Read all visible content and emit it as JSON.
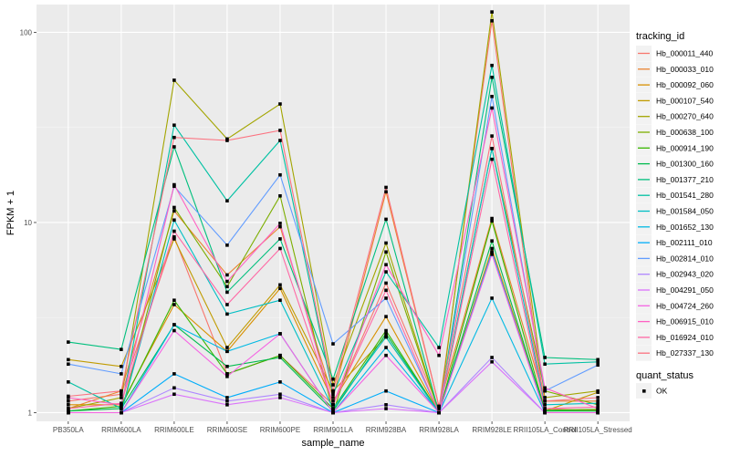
{
  "chart_data": {
    "type": "line",
    "title": "",
    "xlabel": "sample_name",
    "ylabel": "FPKM + 1",
    "y_scale": "log10",
    "ylim": [
      0.9,
      140
    ],
    "y_ticks": [
      1,
      10,
      100
    ],
    "y_tick_labels": [
      "1",
      "10",
      "100"
    ],
    "grid": true,
    "categories": [
      "PB350LA",
      "RRIM600LA",
      "RRIM600LE",
      "RRIM600SE",
      "RRIM600PE",
      "RRIM901LA",
      "RRIM928BA",
      "RRIM928LA",
      "RRIM928LE",
      "RRII105LA_Control",
      "RRII105LA_Stressed"
    ],
    "legend": {
      "position": "right",
      "color_title": "tracking_id",
      "shape_title": "quant_status",
      "shape_entries": [
        "OK"
      ]
    },
    "series": [
      {
        "name": "Hb_000011_440",
        "color": "#F8766D",
        "values": [
          1.15,
          1.25,
          8.4,
          1.6,
          2.0,
          1.1,
          4.8,
          1.05,
          115,
          1.05,
          1.02
        ]
      },
      {
        "name": "Hb_000033_010",
        "color": "#EA8331",
        "values": [
          1.05,
          1.3,
          11.5,
          5.3,
          9.5,
          1.2,
          14.5,
          1.08,
          10.5,
          1.15,
          1.15
        ]
      },
      {
        "name": "Hb_000092_060",
        "color": "#D89000",
        "values": [
          1.1,
          1.1,
          3.7,
          2.1,
          4.5,
          1.15,
          3.2,
          1.0,
          7.3,
          1.02,
          1.03
        ]
      },
      {
        "name": "Hb_000107_540",
        "color": "#C09B00",
        "values": [
          1.9,
          1.75,
          8.2,
          2.2,
          4.7,
          1.3,
          2.5,
          1.0,
          7.0,
          1.02,
          1.28
        ]
      },
      {
        "name": "Hb_000270_640",
        "color": "#A3A500",
        "values": [
          1.05,
          1.2,
          56,
          27.5,
          42,
          1.4,
          7.8,
          1.0,
          128,
          1.2,
          1.3
        ]
      },
      {
        "name": "Hb_000638_100",
        "color": "#7CAE00",
        "values": [
          1.0,
          1.0,
          12.0,
          4.6,
          13.8,
          1.0,
          7.0,
          1.0,
          24.5,
          1.3,
          1.1
        ]
      },
      {
        "name": "Hb_000914_190",
        "color": "#39B600",
        "values": [
          1.02,
          1.08,
          3.9,
          1.6,
          2.0,
          1.05,
          2.7,
          1.0,
          10.2,
          1.03,
          1.04
        ]
      },
      {
        "name": "Hb_001300_160",
        "color": "#00BB4E",
        "values": [
          1.02,
          1.05,
          2.9,
          1.75,
          1.95,
          1.02,
          2.6,
          1.0,
          8.0,
          1.02,
          1.02
        ]
      },
      {
        "name": "Hb_001377_210",
        "color": "#00BF7D",
        "values": [
          2.35,
          2.15,
          25.0,
          4.3,
          8.2,
          1.5,
          10.4,
          1.0,
          58,
          1.95,
          1.9
        ]
      },
      {
        "name": "Hb_001541_280",
        "color": "#00C1A3",
        "values": [
          1.45,
          1.05,
          32.5,
          13.0,
          27.0,
          1.25,
          5.5,
          2.2,
          67,
          1.8,
          1.85
        ]
      },
      {
        "name": "Hb_001584_050",
        "color": "#00BFC4",
        "values": [
          1.0,
          1.0,
          10.3,
          3.3,
          3.9,
          1.05,
          2.5,
          1.0,
          24.5,
          1.1,
          1.12
        ]
      },
      {
        "name": "Hb_001652_130",
        "color": "#00B9E3",
        "values": [
          1.0,
          1.0,
          2.9,
          2.1,
          2.6,
          1.0,
          2.2,
          1.0,
          4.0,
          1.0,
          1.0
        ]
      },
      {
        "name": "Hb_002111_010",
        "color": "#00ADFA",
        "values": [
          1.0,
          1.0,
          1.6,
          1.2,
          1.45,
          1.0,
          1.3,
          1.0,
          7.0,
          1.0,
          1.0
        ]
      },
      {
        "name": "Hb_002814_010",
        "color": "#619CFF",
        "values": [
          1.8,
          1.6,
          15.5,
          7.6,
          17.8,
          2.3,
          4.0,
          1.0,
          46,
          1.3,
          1.78
        ]
      },
      {
        "name": "Hb_002943_020",
        "color": "#AE87FF",
        "values": [
          1.0,
          1.0,
          1.35,
          1.15,
          1.25,
          1.0,
          1.1,
          1.0,
          1.95,
          1.0,
          1.0
        ]
      },
      {
        "name": "Hb_004291_050",
        "color": "#DB72FB",
        "values": [
          1.0,
          1.0,
          1.25,
          1.1,
          1.2,
          1.0,
          1.05,
          1.0,
          1.85,
          1.0,
          1.0
        ]
      },
      {
        "name": "Hb_004724_260",
        "color": "#F564E3",
        "values": [
          1.0,
          1.0,
          2.7,
          1.55,
          2.6,
          1.0,
          2.0,
          1.0,
          6.8,
          1.0,
          1.0
        ]
      },
      {
        "name": "Hb_006915_010",
        "color": "#FF61C3",
        "values": [
          1.2,
          1.1,
          15.8,
          4.9,
          9.9,
          1.1,
          6.0,
          2.0,
          40,
          1.35,
          1.05
        ]
      },
      {
        "name": "Hb_016924_010",
        "color": "#FF67A4",
        "values": [
          1.05,
          1.12,
          9.0,
          3.7,
          7.3,
          1.1,
          4.4,
          1.0,
          21.5,
          1.05,
          1.07
        ]
      },
      {
        "name": "Hb_027337_130",
        "color": "#FC717F",
        "values": [
          1.22,
          1.3,
          28.0,
          27.0,
          30.5,
          1.3,
          15.3,
          1.08,
          28.5,
          1.15,
          1.2
        ]
      }
    ]
  }
}
